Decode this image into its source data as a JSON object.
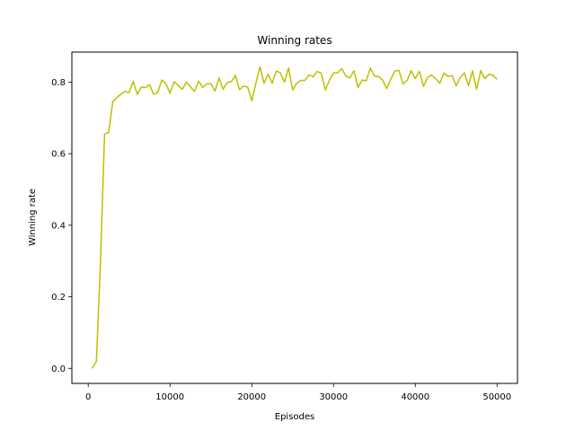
{
  "chart_data": {
    "type": "line",
    "title": "Winning rates",
    "xlabel": "Episodes",
    "ylabel": "Winning rate",
    "xlim": [
      -2000,
      52500
    ],
    "ylim": [
      -0.042,
      0.884
    ],
    "xticks": [
      0,
      10000,
      20000,
      30000,
      40000,
      50000
    ],
    "xtick_labels": [
      "0",
      "10000",
      "20000",
      "30000",
      "40000",
      "50000"
    ],
    "yticks": [
      0.0,
      0.2,
      0.4,
      0.6,
      0.8
    ],
    "ytick_labels": [
      "0.0",
      "0.2",
      "0.4",
      "0.6",
      "0.8"
    ],
    "grid": false,
    "series": [
      {
        "color": "#bfbf00",
        "x": [
          500,
          1000,
          1500,
          2000,
          2500,
          3000,
          3500,
          4000,
          4500,
          5000,
          5500,
          6000,
          6500,
          7000,
          7500,
          8000,
          8500,
          9000,
          9500,
          10000,
          10500,
          11000,
          11500,
          12000,
          12500,
          13000,
          13500,
          14000,
          14500,
          15000,
          15500,
          16000,
          16500,
          17000,
          17500,
          18000,
          18500,
          19000,
          19500,
          20000,
          20500,
          21000,
          21500,
          22000,
          22500,
          23000,
          23500,
          24000,
          24500,
          25000,
          25500,
          26000,
          26500,
          27000,
          27500,
          28000,
          28500,
          29000,
          29500,
          30000,
          30500,
          31000,
          31500,
          32000,
          32500,
          33000,
          33500,
          34000,
          34500,
          35000,
          35500,
          36000,
          36500,
          37000,
          37500,
          38000,
          38500,
          39000,
          39500,
          40000,
          40500,
          41000,
          41500,
          42000,
          42500,
          43000,
          43500,
          44000,
          44500,
          45000,
          45500,
          46000,
          46500,
          47000,
          47500,
          48000,
          48500,
          49000,
          49500,
          50000
        ],
        "y": [
          0.0,
          0.02,
          0.3,
          0.655,
          0.66,
          0.745,
          0.757,
          0.766,
          0.774,
          0.771,
          0.802,
          0.766,
          0.786,
          0.785,
          0.793,
          0.766,
          0.771,
          0.806,
          0.795,
          0.769,
          0.801,
          0.791,
          0.78,
          0.8,
          0.787,
          0.774,
          0.803,
          0.785,
          0.795,
          0.796,
          0.775,
          0.812,
          0.78,
          0.799,
          0.801,
          0.819,
          0.779,
          0.789,
          0.786,
          0.748,
          0.796,
          0.843,
          0.797,
          0.822,
          0.797,
          0.831,
          0.826,
          0.8,
          0.84,
          0.778,
          0.797,
          0.805,
          0.805,
          0.82,
          0.815,
          0.83,
          0.825,
          0.778,
          0.806,
          0.826,
          0.826,
          0.838,
          0.817,
          0.812,
          0.832,
          0.785,
          0.806,
          0.804,
          0.839,
          0.817,
          0.816,
          0.806,
          0.782,
          0.808,
          0.831,
          0.833,
          0.795,
          0.805,
          0.832,
          0.81,
          0.83,
          0.788,
          0.813,
          0.82,
          0.809,
          0.797,
          0.825,
          0.816,
          0.818,
          0.79,
          0.813,
          0.826,
          0.79,
          0.831,
          0.78,
          0.832,
          0.81,
          0.822,
          0.819,
          0.808
        ]
      }
    ]
  }
}
